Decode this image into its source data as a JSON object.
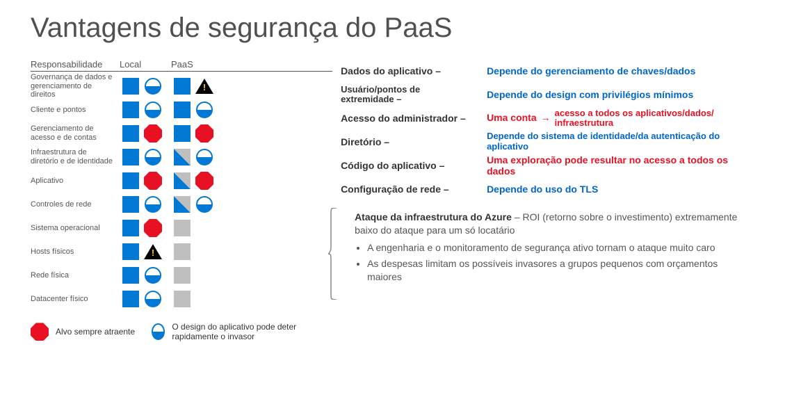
{
  "title": "Vantagens de segurança do PaaS",
  "colors": {
    "blue": "#0078d4",
    "gray": "#bfbfbf",
    "red": "#e81123",
    "linkBlue": "#0066cc",
    "black": "#000000",
    "warnYellow": "#ffcc00"
  },
  "headers": {
    "responsibility": "Responsabilidade",
    "local": "Local",
    "paas": "PaaS"
  },
  "rows": [
    {
      "label": "Governança de dados e gerenciamento de direitos",
      "local": [
        "blue",
        "half"
      ],
      "paas": [
        "blue",
        "warn"
      ]
    },
    {
      "label": "Cliente e pontos",
      "local": [
        "blue",
        "half"
      ],
      "paas": [
        "blue",
        "half"
      ]
    },
    {
      "label": "Gerenciamento de acesso e de contas",
      "local": [
        "blue",
        "oct"
      ],
      "paas": [
        "blue",
        "oct"
      ]
    },
    {
      "label": "Infraestrutura de diretório e de identidade",
      "local": [
        "blue",
        "half"
      ],
      "paas": [
        "tri",
        "half"
      ]
    },
    {
      "label": "Aplicativo",
      "local": [
        "blue",
        "oct"
      ],
      "paas": [
        "tri",
        "oct"
      ]
    },
    {
      "label": "Controles de rede",
      "local": [
        "blue",
        "half"
      ],
      "paas": [
        "tri",
        "half"
      ]
    },
    {
      "label": "Sistema operacional",
      "local": [
        "blue",
        "oct"
      ],
      "paas": [
        "gray",
        ""
      ]
    },
    {
      "label": "Hosts físicos",
      "local": [
        "blue",
        "warn"
      ],
      "paas": [
        "gray",
        ""
      ]
    },
    {
      "label": "Rede física",
      "local": [
        "blue",
        "half"
      ],
      "paas": [
        "gray",
        ""
      ]
    },
    {
      "label": "Datacenter físico",
      "local": [
        "blue",
        "half"
      ],
      "paas": [
        "gray",
        ""
      ]
    }
  ],
  "details": [
    {
      "label": "Dados do aplicativo –",
      "text": "Depende do gerenciamento de chaves/dados",
      "cls": "blue-text"
    },
    {
      "label": "Usuário/pontos de extremidade –",
      "text": "Depende do design com privilégios mínimos",
      "cls": "blue-text",
      "two": true
    },
    {
      "label": "Acesso do administrador –",
      "text": "Uma conta",
      "arrow": "→",
      "after": "acesso a todos os aplicativos/dados/ infraestrutura",
      "cls": "red-text"
    },
    {
      "label": "Diretório –",
      "text": "Depende do sistema de identidade/da autenticação do aplicativo",
      "cls": "blue-text"
    },
    {
      "label": "Código do aplicativo –",
      "text": "Uma exploração pode resultar no acesso a todos os dados",
      "cls": "red-text"
    },
    {
      "label": "Configuração de rede –",
      "text": "Depende do uso do TLS",
      "cls": "blue-text"
    }
  ],
  "infra": {
    "title": "Ataque da infraestrutura do Azure",
    "subtitle": " – ROI (retorno sobre o investimento) extremamente baixo do ataque para um só locatário",
    "bullets": [
      "A engenharia e o monitoramento de segurança ativo tornam o ataque muito caro",
      "As despesas limitam os possíveis invasores a grupos pequenos com orçamentos maiores"
    ]
  },
  "legend": {
    "octagon": "Alvo sempre atraente",
    "half": "O design do aplicativo pode deter rapidamente o invasor"
  }
}
